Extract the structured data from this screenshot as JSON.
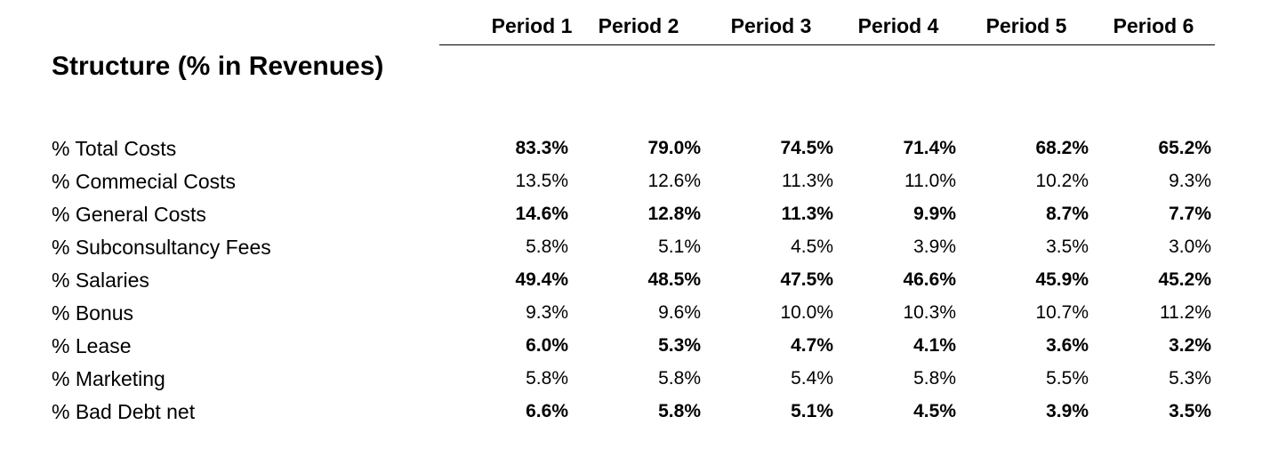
{
  "periods": [
    "Period 1",
    "Period 2",
    "Period 3",
    "Period 4",
    "Period 5",
    "Period 6"
  ],
  "section_title": "Structure (% in Revenues)",
  "rows": [
    {
      "label": "% Total Costs",
      "bold": true,
      "values": [
        "83.3%",
        "79.0%",
        "74.5%",
        "71.4%",
        "68.2%",
        "65.2%"
      ]
    },
    {
      "label": "% Commecial Costs",
      "bold": false,
      "values": [
        "13.5%",
        "12.6%",
        "11.3%",
        "11.0%",
        "10.2%",
        "9.3%"
      ]
    },
    {
      "label": "% General Costs",
      "bold": true,
      "values": [
        "14.6%",
        "12.8%",
        "11.3%",
        "9.9%",
        "8.7%",
        "7.7%"
      ]
    },
    {
      "label": "% Subconsultancy Fees",
      "bold": false,
      "values": [
        "5.8%",
        "5.1%",
        "4.5%",
        "3.9%",
        "3.5%",
        "3.0%"
      ]
    },
    {
      "label": "% Salaries",
      "bold": true,
      "values": [
        "49.4%",
        "48.5%",
        "47.5%",
        "46.6%",
        "45.9%",
        "45.2%"
      ]
    },
    {
      "label": "% Bonus",
      "bold": false,
      "values": [
        "9.3%",
        "9.6%",
        "10.0%",
        "10.3%",
        "10.7%",
        "11.2%"
      ]
    },
    {
      "label": "% Lease",
      "bold": true,
      "values": [
        "6.0%",
        "5.3%",
        "4.7%",
        "4.1%",
        "3.6%",
        "3.2%"
      ]
    },
    {
      "label": "% Marketing",
      "bold": false,
      "values": [
        "5.8%",
        "5.8%",
        "5.4%",
        "5.8%",
        "5.5%",
        "5.3%"
      ]
    },
    {
      "label": "% Bad Debt net",
      "bold": true,
      "values": [
        "6.6%",
        "5.8%",
        "5.1%",
        "4.5%",
        "3.9%",
        "3.5%"
      ]
    }
  ]
}
